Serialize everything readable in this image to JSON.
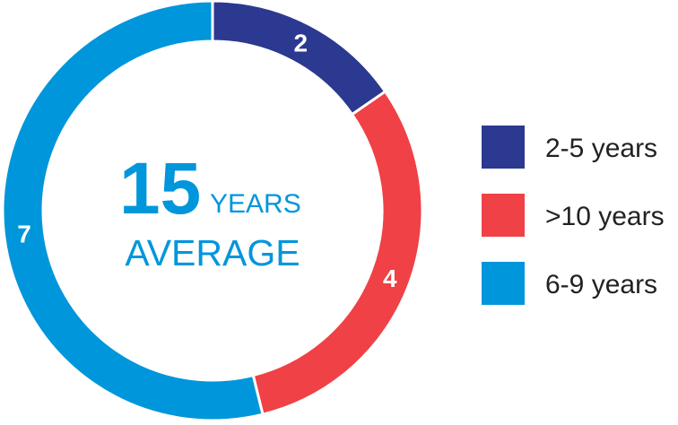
{
  "chart_data": {
    "type": "donut",
    "categories": [
      "2-5 years",
      ">10 years",
      "6-9 years"
    ],
    "values": [
      2,
      4,
      7
    ],
    "colors": [
      "#2b3990",
      "#ef4146",
      "#0096db"
    ],
    "center_value": 15,
    "center_unit": "YEARS",
    "center_label": "AVERAGE",
    "legend": "right"
  }
}
